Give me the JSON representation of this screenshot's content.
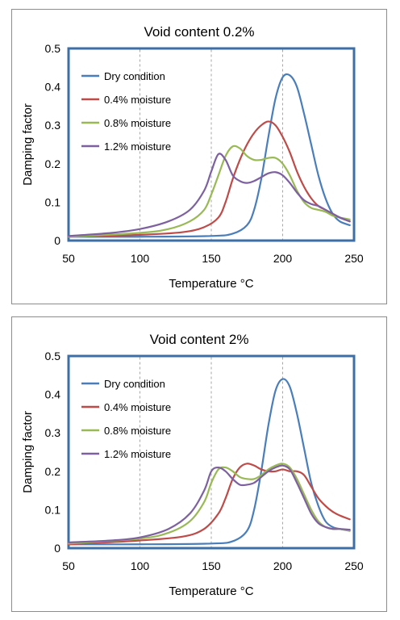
{
  "chart_data": [
    {
      "type": "line",
      "title": "Void content 0.2%",
      "xlabel": "Temperature",
      "xlabel_unit": "°C",
      "ylabel": "Damping factor",
      "xlim": [
        50,
        250
      ],
      "ylim": [
        0,
        0.5
      ],
      "xticks": [
        "50",
        "100",
        "150",
        "200",
        "250"
      ],
      "yticks": [
        "0",
        "0.1",
        "0.2",
        "0.3",
        "0.4",
        "0.5"
      ],
      "grid": "vertical dashed",
      "legend": "top-left",
      "series": [
        {
          "name": "Dry condition",
          "color": "#4a7ebb",
          "x": [
            50,
            100,
            150,
            165,
            175,
            180,
            185,
            190,
            195,
            200,
            205,
            210,
            215,
            220,
            225,
            230,
            235,
            240,
            247
          ],
          "y": [
            0.01,
            0.01,
            0.012,
            0.018,
            0.04,
            0.08,
            0.16,
            0.27,
            0.37,
            0.425,
            0.43,
            0.4,
            0.33,
            0.25,
            0.17,
            0.11,
            0.07,
            0.05,
            0.04
          ]
        },
        {
          "name": "0.4% moisture",
          "color": "#be4b48",
          "x": [
            50,
            100,
            130,
            145,
            155,
            160,
            165,
            170,
            175,
            180,
            185,
            190,
            195,
            200,
            205,
            210,
            215,
            220,
            225,
            230,
            235,
            240,
            247
          ],
          "y": [
            0.01,
            0.015,
            0.022,
            0.035,
            0.06,
            0.1,
            0.16,
            0.21,
            0.25,
            0.28,
            0.3,
            0.31,
            0.3,
            0.27,
            0.23,
            0.18,
            0.14,
            0.11,
            0.09,
            0.08,
            0.07,
            0.06,
            0.05
          ]
        },
        {
          "name": "0.8% moisture",
          "color": "#98b954",
          "x": [
            50,
            100,
            120,
            135,
            145,
            150,
            155,
            160,
            165,
            170,
            175,
            180,
            185,
            190,
            195,
            200,
            205,
            210,
            215,
            220,
            225,
            230,
            235,
            240,
            247
          ],
          "y": [
            0.01,
            0.02,
            0.03,
            0.05,
            0.08,
            0.12,
            0.17,
            0.22,
            0.245,
            0.24,
            0.22,
            0.21,
            0.21,
            0.215,
            0.215,
            0.2,
            0.17,
            0.13,
            0.1,
            0.085,
            0.08,
            0.075,
            0.065,
            0.06,
            0.055
          ]
        },
        {
          "name": "1.2% moisture",
          "color": "#7d60a0",
          "x": [
            50,
            80,
            100,
            120,
            135,
            145,
            150,
            155,
            160,
            165,
            170,
            175,
            180,
            185,
            190,
            195,
            200,
            205,
            210,
            215,
            220,
            225,
            230,
            235,
            240,
            247
          ],
          "y": [
            0.012,
            0.02,
            0.03,
            0.05,
            0.08,
            0.13,
            0.18,
            0.225,
            0.21,
            0.17,
            0.155,
            0.15,
            0.155,
            0.165,
            0.175,
            0.178,
            0.17,
            0.15,
            0.125,
            0.105,
            0.095,
            0.09,
            0.08,
            0.07,
            0.06,
            0.05
          ]
        }
      ]
    },
    {
      "type": "line",
      "title": "Void content 2%",
      "xlabel": "Temperature",
      "xlabel_unit": "°C",
      "ylabel": "Damping factor",
      "xlim": [
        50,
        250
      ],
      "ylim": [
        0,
        0.5
      ],
      "xticks": [
        "50",
        "100",
        "150",
        "200",
        "250"
      ],
      "yticks": [
        "0",
        "0.1",
        "0.2",
        "0.3",
        "0.4",
        "0.5"
      ],
      "grid": "vertical dashed",
      "legend": "top-left",
      "series": [
        {
          "name": "Dry condition",
          "color": "#4a7ebb",
          "x": [
            50,
            100,
            150,
            165,
            175,
            180,
            185,
            190,
            195,
            200,
            205,
            210,
            215,
            220,
            225,
            230,
            235,
            240,
            247
          ],
          "y": [
            0.01,
            0.01,
            0.012,
            0.018,
            0.045,
            0.1,
            0.2,
            0.32,
            0.41,
            0.44,
            0.42,
            0.35,
            0.26,
            0.17,
            0.11,
            0.07,
            0.055,
            0.05,
            0.045
          ]
        },
        {
          "name": "0.4% moisture",
          "color": "#be4b48",
          "x": [
            50,
            100,
            130,
            145,
            155,
            160,
            165,
            170,
            175,
            180,
            185,
            190,
            195,
            200,
            205,
            210,
            215,
            220,
            225,
            230,
            235,
            240,
            247
          ],
          "y": [
            0.01,
            0.02,
            0.03,
            0.05,
            0.09,
            0.13,
            0.18,
            0.21,
            0.22,
            0.215,
            0.205,
            0.2,
            0.2,
            0.205,
            0.2,
            0.2,
            0.19,
            0.16,
            0.13,
            0.11,
            0.095,
            0.085,
            0.075
          ]
        },
        {
          "name": "0.8% moisture",
          "color": "#98b954",
          "x": [
            50,
            100,
            120,
            135,
            145,
            150,
            155,
            160,
            165,
            170,
            175,
            180,
            185,
            190,
            195,
            200,
            205,
            210,
            215,
            220,
            225,
            230,
            235,
            240,
            247
          ],
          "y": [
            0.012,
            0.025,
            0.04,
            0.07,
            0.12,
            0.17,
            0.205,
            0.21,
            0.2,
            0.185,
            0.18,
            0.18,
            0.19,
            0.205,
            0.215,
            0.22,
            0.21,
            0.18,
            0.14,
            0.1,
            0.07,
            0.055,
            0.05,
            0.05,
            0.045
          ]
        },
        {
          "name": "1.2% moisture",
          "color": "#7d60a0",
          "x": [
            50,
            80,
            100,
            120,
            135,
            145,
            150,
            155,
            160,
            165,
            170,
            175,
            180,
            185,
            190,
            195,
            200,
            205,
            210,
            215,
            220,
            225,
            230,
            235,
            240,
            247
          ],
          "y": [
            0.015,
            0.02,
            0.028,
            0.05,
            0.09,
            0.15,
            0.2,
            0.21,
            0.2,
            0.18,
            0.165,
            0.165,
            0.17,
            0.185,
            0.2,
            0.21,
            0.215,
            0.205,
            0.17,
            0.13,
            0.09,
            0.065,
            0.055,
            0.05,
            0.05,
            0.048
          ]
        }
      ]
    }
  ]
}
